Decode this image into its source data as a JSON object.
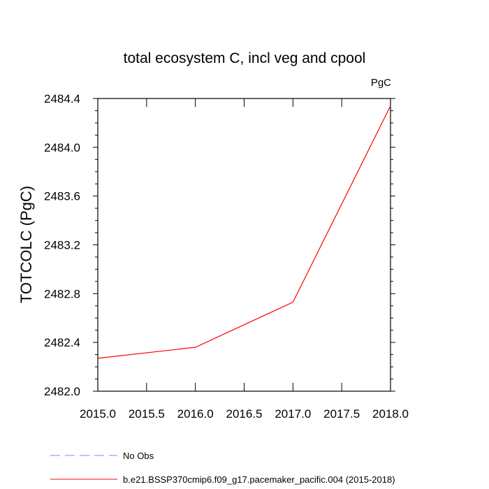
{
  "chart_data": {
    "type": "line",
    "title": "total ecosystem C, incl veg and cpool",
    "units_label": "PgC",
    "xlabel": "",
    "ylabel": "TOTCOLC  (PgC)",
    "xlim": [
      2015.0,
      2018.0
    ],
    "ylim": [
      2482.0,
      2484.4
    ],
    "x_ticks": [
      "2015.0",
      "2015.5",
      "2016.0",
      "2016.5",
      "2017.0",
      "2017.5",
      "2018.0"
    ],
    "y_ticks": [
      "2482.0",
      "2482.4",
      "2482.8",
      "2483.2",
      "2483.6",
      "2484.0",
      "2484.4"
    ],
    "grid": false,
    "legend_position": "bottom",
    "series": [
      {
        "name": "b.e21.BSSP370cmip6.f09_g17.pacemaker_pacific.004 (2015-2018)",
        "color": "#ff0000",
        "line_style": "solid",
        "x": [
          2015.0,
          2016.0,
          2017.0,
          2018.0
        ],
        "y": [
          2482.27,
          2482.36,
          2482.73,
          2484.34
        ]
      }
    ],
    "legend": [
      {
        "label": "No Obs",
        "color": "#8080ff",
        "line_style": "dashed"
      },
      {
        "label": "b.e21.BSSP370cmip6.f09_g17.pacemaker_pacific.004 (2015-2018)",
        "color": "#ff0000",
        "line_style": "solid"
      }
    ]
  }
}
